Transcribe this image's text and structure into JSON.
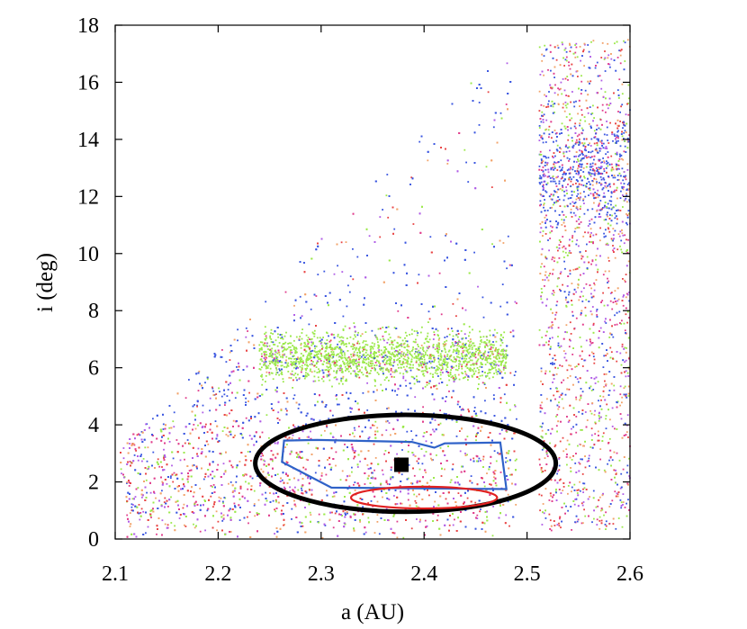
{
  "chart_data": {
    "type": "scatter",
    "title": "",
    "xlabel": "a (AU)",
    "ylabel": "i (deg)",
    "xlim": [
      2.1,
      2.6
    ],
    "ylim": [
      0,
      18
    ],
    "xticks": [
      2.1,
      2.2,
      2.3,
      2.4,
      2.5,
      2.6
    ],
    "yticks": [
      0,
      2,
      4,
      6,
      8,
      10,
      12,
      14,
      16,
      18
    ],
    "xtick_labels": [
      "2.1",
      "2.2",
      "2.3",
      "2.4",
      "2.5",
      "2.6"
    ],
    "ytick_labels": [
      "0",
      "2",
      "4",
      "6",
      "8",
      "10",
      "12",
      "14",
      "16",
      "18"
    ],
    "grid": false,
    "legend": "none",
    "point_colors": [
      "#3a56e0",
      "#e03c8c",
      "#9be84a",
      "#f2a36a",
      "#b05ce6",
      "#e84444"
    ],
    "scatter_regions": [
      {
        "description": "main belt envelope",
        "a_range": [
          2.1,
          2.49
        ],
        "i_range": [
          0,
          17.5
        ]
      },
      {
        "description": "dense green cluster",
        "a_range": [
          2.24,
          2.48
        ],
        "i_range": [
          5.5,
          7.3
        ]
      },
      {
        "description": "outer belt column",
        "a_range": [
          2.51,
          2.6
        ],
        "i_range": [
          0.5,
          17.5
        ]
      }
    ],
    "marker": {
      "a": 2.378,
      "i": 2.6,
      "shape": "square",
      "color": "#000000"
    },
    "ellipses": [
      {
        "center": [
          2.382,
          2.65
        ],
        "semi_axes": [
          0.146,
          1.7
        ],
        "color": "#000000"
      },
      {
        "center": [
          2.4,
          1.45
        ],
        "semi_axes": [
          0.071,
          0.38
        ],
        "color": "#e02020"
      }
    ],
    "polygon": {
      "color": "#2f62c8",
      "vertices": [
        [
          2.264,
          3.45
        ],
        [
          2.296,
          3.47
        ],
        [
          2.388,
          3.4
        ],
        [
          2.41,
          3.2
        ],
        [
          2.42,
          3.35
        ],
        [
          2.474,
          3.38
        ],
        [
          2.48,
          1.75
        ],
        [
          2.31,
          1.8
        ],
        [
          2.262,
          2.7
        ]
      ]
    }
  }
}
